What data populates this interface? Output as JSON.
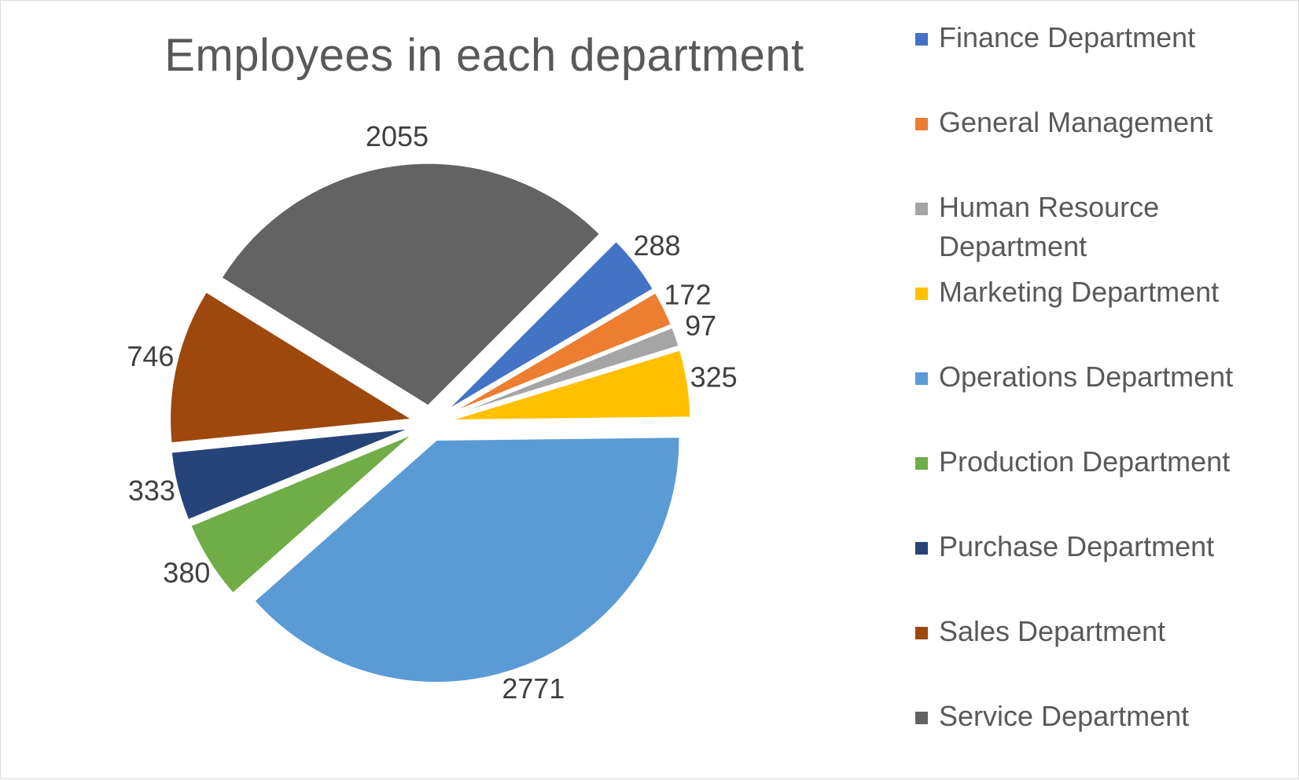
{
  "chart_data": {
    "type": "pie",
    "title": "Employees in each department",
    "slices": [
      {
        "name": "Finance Department",
        "value": 288,
        "color": "#4472C4"
      },
      {
        "name": "General Management",
        "value": 172,
        "color": "#ED7D31"
      },
      {
        "name": "Human Resource Department",
        "value": 97,
        "color": "#A5A5A5"
      },
      {
        "name": "Marketing Department",
        "value": 325,
        "color": "#FFC000"
      },
      {
        "name": "Operations Department",
        "value": 2771,
        "color": "#5B9BD5"
      },
      {
        "name": "Production Department",
        "value": 380,
        "color": "#70AD47"
      },
      {
        "name": "Purchase Department",
        "value": 333,
        "color": "#264478"
      },
      {
        "name": "Sales Department",
        "value": 746,
        "color": "#9E480E"
      },
      {
        "name": "Service Department",
        "value": 2055,
        "color": "#636363"
      }
    ],
    "legend_position": "right",
    "data_labels": "outside-end",
    "exploded": true
  }
}
